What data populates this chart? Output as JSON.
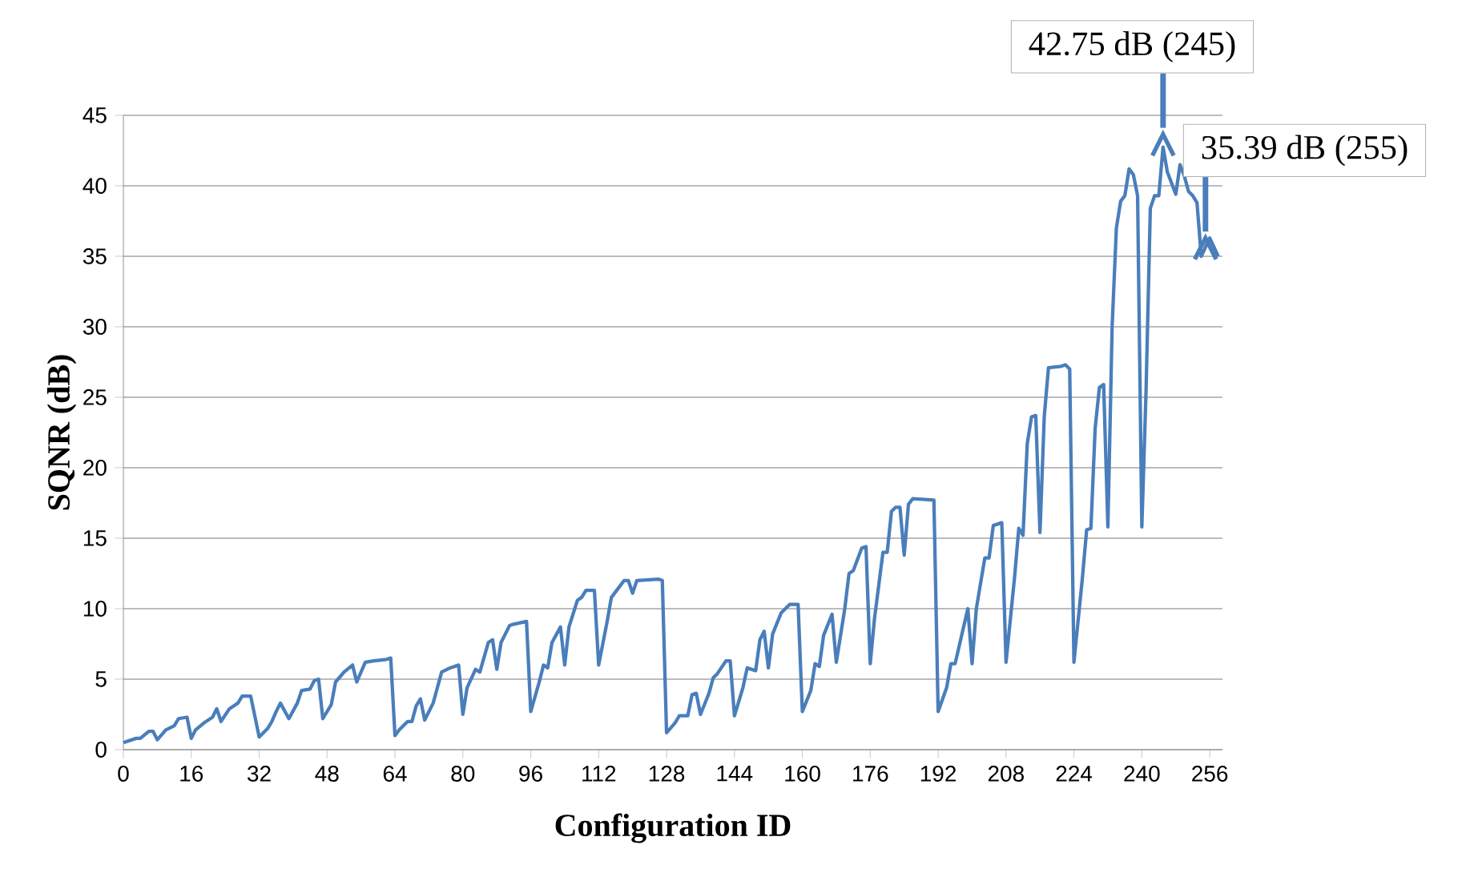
{
  "chart_data": {
    "type": "line",
    "xlabel": "Configuration ID",
    "ylabel": "SQNR (dB)",
    "xlim": [
      0,
      259
    ],
    "xticks": [
      0,
      16,
      32,
      48,
      64,
      80,
      96,
      112,
      128,
      144,
      160,
      176,
      192,
      208,
      224,
      240,
      256
    ],
    "ylim": [
      0,
      45
    ],
    "yticks": [
      0,
      5,
      10,
      15,
      20,
      25,
      30,
      35,
      40,
      45
    ],
    "grid": "y",
    "series": [
      {
        "color": "#4a7ebb",
        "x": [
          0,
          3,
          4,
          6,
          7,
          8,
          10,
          12,
          13,
          15,
          16,
          17,
          19,
          21,
          22,
          23,
          25,
          27,
          28,
          30,
          32,
          34,
          35,
          36,
          37,
          39,
          41,
          42,
          44,
          45,
          46,
          47,
          49,
          50,
          52,
          54,
          55,
          57,
          59,
          62,
          63,
          64,
          65,
          67,
          68,
          69,
          70,
          71,
          73,
          74,
          75,
          77,
          79,
          80,
          81,
          83,
          84,
          86,
          87,
          88,
          89,
          91,
          92,
          95,
          96,
          98,
          99,
          100,
          101,
          103,
          104,
          105,
          107,
          108,
          109,
          111,
          112,
          114,
          115,
          116,
          118,
          119,
          120,
          121,
          126,
          127,
          128,
          130,
          131,
          133,
          134,
          135,
          136,
          138,
          139,
          140,
          142,
          143,
          144,
          146,
          147,
          149,
          150,
          151,
          152,
          153,
          155,
          157,
          159,
          160,
          162,
          163,
          164,
          165,
          167,
          168,
          170,
          171,
          172,
          174,
          175,
          176,
          177,
          179,
          180,
          181,
          182,
          183,
          184,
          185,
          186,
          191,
          192,
          194,
          195,
          196,
          198,
          199,
          200,
          201,
          203,
          204,
          205,
          207,
          208,
          210,
          211,
          212,
          213,
          214,
          215,
          216,
          217,
          218,
          221,
          222,
          223,
          224,
          226,
          227,
          228,
          229,
          230,
          231,
          232,
          233,
          234,
          235,
          236,
          237,
          238,
          239,
          240,
          241,
          242,
          243,
          244,
          245,
          246,
          248,
          249,
          250,
          251,
          252,
          253,
          254,
          256,
          258
        ],
        "values": [
          0.5,
          0.8,
          0.8,
          1.3,
          1.3,
          0.7,
          1.4,
          1.7,
          2.2,
          2.3,
          0.8,
          1.4,
          1.9,
          2.3,
          2.9,
          2.0,
          2.9,
          3.3,
          3.8,
          3.8,
          0.9,
          1.5,
          2.0,
          2.7,
          3.3,
          2.2,
          3.3,
          4.2,
          4.3,
          4.9,
          5.0,
          2.2,
          3.2,
          4.8,
          5.5,
          6.0,
          4.8,
          6.2,
          6.3,
          6.4,
          6.5,
          1.0,
          1.4,
          2.0,
          2.0,
          3.1,
          3.6,
          2.1,
          3.3,
          4.4,
          5.5,
          5.8,
          6.0,
          2.5,
          4.4,
          5.7,
          5.5,
          7.6,
          7.8,
          5.7,
          7.6,
          8.8,
          8.9,
          9.1,
          2.7,
          4.8,
          6.0,
          5.8,
          7.6,
          8.7,
          6.0,
          8.7,
          10.6,
          10.8,
          11.3,
          11.3,
          6.0,
          9.1,
          10.8,
          11.2,
          12.0,
          12.0,
          11.1,
          12.0,
          12.1,
          12.0,
          1.2,
          1.9,
          2.4,
          2.4,
          3.9,
          4.0,
          2.5,
          4.0,
          5.1,
          5.4,
          6.3,
          6.3,
          2.4,
          4.4,
          5.8,
          5.6,
          7.8,
          8.4,
          5.8,
          8.2,
          9.7,
          10.3,
          10.3,
          2.7,
          4.2,
          6.1,
          5.9,
          8.1,
          9.6,
          6.2,
          10.0,
          12.5,
          12.7,
          14.3,
          14.4,
          6.1,
          9.3,
          14.0,
          14.0,
          16.9,
          17.2,
          17.2,
          13.8,
          17.4,
          17.8,
          17.7,
          2.7,
          4.4,
          6.1,
          6.1,
          8.7,
          10.0,
          6.1,
          10.0,
          13.6,
          13.6,
          15.9,
          16.1,
          6.2,
          12.2,
          15.7,
          15.2,
          21.7,
          23.6,
          23.7,
          15.4,
          23.6,
          27.1,
          27.2,
          27.3,
          27.0,
          6.2,
          12.2,
          15.6,
          15.7,
          22.8,
          25.7,
          25.9,
          15.8,
          30.0,
          37.0,
          38.9,
          39.3,
          41.2,
          40.8,
          39.3,
          15.8,
          25.5,
          38.4,
          39.3,
          39.3,
          42.75,
          41.0,
          39.4,
          41.5,
          40.7,
          39.6,
          39.3,
          38.8,
          35.0,
          36.3,
          35.0
        ]
      }
    ],
    "annotations": [
      {
        "text": "42.75 dB (245)",
        "x": 245,
        "y": 42.75
      },
      {
        "text": "35.39 dB (255)",
        "x": 255,
        "y": 35.39
      }
    ]
  }
}
